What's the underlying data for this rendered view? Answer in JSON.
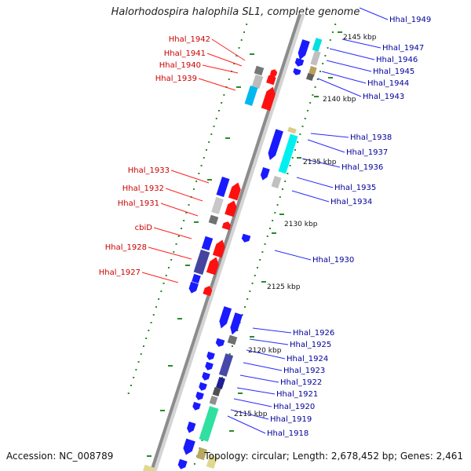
{
  "title": "Halorhodospira halophila SL1, complete genome",
  "accession": "Accession: NC_008789",
  "topology": "Topology: circular; Length: 2,678,452 bp; Genes: 2,461",
  "kbp_ticks": [
    "2145 kbp",
    "2140 kbp",
    "2135 kbp",
    "2130 kbp",
    "2125 kbp",
    "2120 kbp",
    "2115 kbp"
  ],
  "left_genes": [
    "Hhal_1942",
    "Hhal_1941",
    "Hhal_1940",
    "Hhal_1939",
    "Hhal_1933",
    "Hhal_1932",
    "Hhal_1931",
    "cbiD",
    "Hhal_1928",
    "Hhal_1927"
  ],
  "right_genes": [
    "Hhal_1949",
    "Hhal_1947",
    "Hhal_1946",
    "Hhal_1945",
    "Hhal_1944",
    "Hhal_1943",
    "Hhal_1938",
    "Hhal_1937",
    "Hhal_1936",
    "Hhal_1935",
    "Hhal_1934",
    "Hhal_1930",
    "Hhal_1926",
    "Hhal_1925",
    "Hhal_1924",
    "Hhal_1923",
    "Hhal_1922",
    "Hhal_1921",
    "Hhal_1920",
    "Hhal_1919",
    "Hhal_1918"
  ],
  "colors": {
    "forward": "#1a1aff",
    "reverse": "#ff1010",
    "left_label": "#cc0000",
    "right_label": "#00009a",
    "tick": "#2a8a2a",
    "backbone": "#999999"
  }
}
